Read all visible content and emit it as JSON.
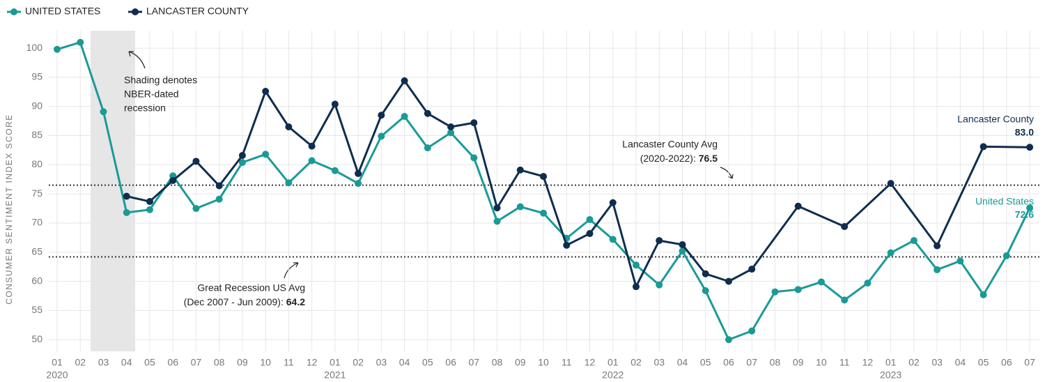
{
  "chart_data": {
    "type": "line",
    "y_axis_label": "CONSUMER SENTIMENT INDEX SCORE",
    "categories": [
      "01",
      "02",
      "03",
      "04",
      "05",
      "06",
      "07",
      "08",
      "09",
      "10",
      "11",
      "12",
      "01",
      "02",
      "03",
      "04",
      "05",
      "06",
      "07",
      "08",
      "09",
      "10",
      "11",
      "12",
      "01",
      "02",
      "03",
      "04",
      "05",
      "06",
      "07",
      "08",
      "09",
      "10",
      "11",
      "12",
      "01",
      "02",
      "03",
      "04",
      "05",
      "06",
      "07"
    ],
    "years": [
      "2020",
      null,
      null,
      null,
      null,
      null,
      null,
      null,
      null,
      null,
      null,
      null,
      "2021",
      null,
      null,
      null,
      null,
      null,
      null,
      null,
      null,
      null,
      null,
      null,
      "2022",
      null,
      null,
      null,
      null,
      null,
      null,
      null,
      null,
      null,
      null,
      null,
      "2023",
      null,
      null,
      null,
      null,
      null,
      null
    ],
    "series": [
      {
        "name": "UNITED STATES",
        "color": "#1a9a96",
        "end_label": "United States",
        "end_value_label": "72.6",
        "values": [
          99.8,
          101.0,
          89.1,
          71.8,
          72.3,
          78.1,
          72.5,
          74.1,
          80.4,
          81.8,
          76.9,
          80.7,
          79.0,
          76.8,
          84.9,
          88.3,
          82.9,
          85.5,
          81.2,
          70.3,
          72.8,
          71.7,
          67.4,
          70.6,
          67.2,
          62.8,
          59.4,
          65.2,
          58.4,
          50.0,
          51.5,
          58.2,
          58.6,
          59.9,
          56.8,
          59.7,
          64.9,
          67.0,
          62.0,
          63.5,
          57.7,
          64.4,
          72.6
        ]
      },
      {
        "name": "LANCASTER COUNTY",
        "color": "#0f2d4e",
        "end_label": "Lancaster County",
        "end_value_label": "83.0",
        "values": [
          null,
          null,
          null,
          74.6,
          73.7,
          77.3,
          80.6,
          76.4,
          81.6,
          92.6,
          86.5,
          83.2,
          90.4,
          78.5,
          88.5,
          94.4,
          88.8,
          86.5,
          87.2,
          72.6,
          79.1,
          78.0,
          66.2,
          68.2,
          73.5,
          59.1,
          67.0,
          66.3,
          61.3,
          60.0,
          62.1,
          null,
          72.9,
          null,
          69.4,
          null,
          76.8,
          null,
          66.1,
          null,
          83.1,
          null,
          83.0
        ]
      }
    ],
    "reference_lines": [
      {
        "value": 76.5,
        "label_lines": [
          "Lancaster County Avg",
          "(2020-2022): "
        ],
        "value_label": "76.5"
      },
      {
        "value": 64.2,
        "label_lines": [
          "Great Recession US Avg",
          "(Dec 2007 - Jun 2009): "
        ],
        "value_label": "64.2"
      }
    ],
    "shading_note": [
      "Shading denotes",
      "NBER-dated",
      "recession"
    ],
    "ylim": [
      48,
      103
    ],
    "yticks": [
      50,
      55,
      60,
      65,
      70,
      75,
      80,
      85,
      90,
      95,
      100
    ],
    "grid": true,
    "legend": "top-left"
  }
}
